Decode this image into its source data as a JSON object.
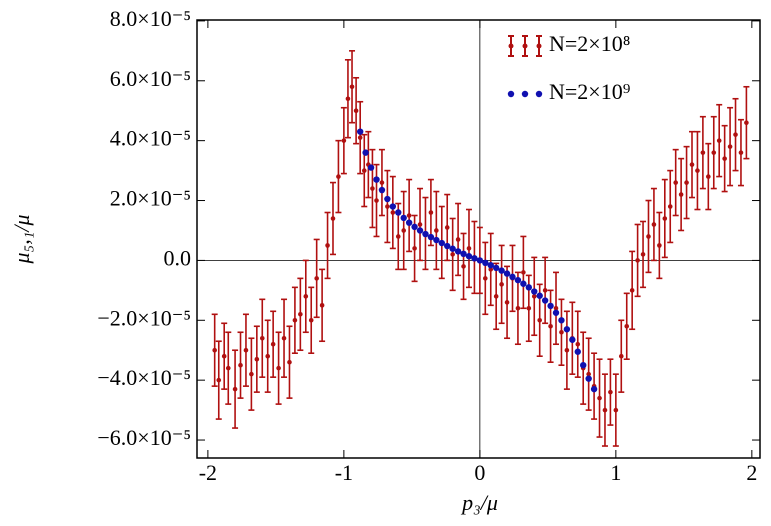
{
  "chart_data": {
    "type": "errorbar-scatter",
    "x_label": "p₃/μ",
    "y_label": "μ₅,₁/μ",
    "xlim": [
      -2.08,
      2.06
    ],
    "ylim": [
      -6.6e-05,
      8.03e-05
    ],
    "xticks": [
      -2,
      -1,
      0,
      1,
      2
    ],
    "yticks": [
      {
        "value": -6e-05,
        "label": "−6.0×10⁻⁵"
      },
      {
        "value": -4e-05,
        "label": "−4.0×10⁻⁵"
      },
      {
        "value": -2e-05,
        "label": "−2.0×10⁻⁵"
      },
      {
        "value": 0,
        "label": "0.0"
      },
      {
        "value": 2e-05,
        "label": "2.0×10⁻⁵"
      },
      {
        "value": 4e-05,
        "label": "4.0×10⁻⁵"
      },
      {
        "value": 6e-05,
        "label": "6.0×10⁻⁵"
      },
      {
        "value": 8e-05,
        "label": "8.0×10⁻⁵"
      }
    ],
    "zero_lines": true,
    "legend": "upper right",
    "series": [
      {
        "name": "N=2×10⁸",
        "color": "#b01010",
        "x": [
          -1.95,
          -1.92,
          -1.88,
          -1.85,
          -1.8,
          -1.76,
          -1.72,
          -1.68,
          -1.64,
          -1.6,
          -1.56,
          -1.52,
          -1.48,
          -1.44,
          -1.4,
          -1.36,
          -1.32,
          -1.28,
          -1.24,
          -1.2,
          -1.16,
          -1.12,
          -1.08,
          -1.04,
          -1.0,
          -0.97,
          -0.94,
          -0.91,
          -0.88,
          -0.85,
          -0.82,
          -0.79,
          -0.76,
          -0.72,
          -0.68,
          -0.64,
          -0.6,
          -0.56,
          -0.52,
          -0.48,
          -0.44,
          -0.4,
          -0.36,
          -0.32,
          -0.28,
          -0.24,
          -0.2,
          -0.16,
          -0.12,
          -0.08,
          -0.04,
          0.0,
          0.04,
          0.08,
          0.12,
          0.16,
          0.2,
          0.24,
          0.28,
          0.32,
          0.36,
          0.4,
          0.44,
          0.48,
          0.52,
          0.56,
          0.6,
          0.64,
          0.68,
          0.72,
          0.76,
          0.8,
          0.84,
          0.88,
          0.92,
          0.96,
          1.0,
          1.04,
          1.08,
          1.12,
          1.16,
          1.2,
          1.24,
          1.28,
          1.32,
          1.36,
          1.4,
          1.44,
          1.48,
          1.52,
          1.56,
          1.6,
          1.64,
          1.68,
          1.72,
          1.76,
          1.8,
          1.84,
          1.88,
          1.92,
          1.96
        ],
        "values": [
          -3e-05,
          -4e-05,
          -3.2e-05,
          -3.6e-05,
          -4.3e-05,
          -3.5e-05,
          -3e-05,
          -3.8e-05,
          -3.3e-05,
          -2.6e-05,
          -3.2e-05,
          -2.8e-05,
          -3.6e-05,
          -2.6e-05,
          -3.4e-05,
          -2e-05,
          -1.8e-05,
          -1.2e-05,
          -2e-05,
          -6e-06,
          -1.5e-05,
          5e-06,
          1.4e-05,
          2.8e-05,
          4e-05,
          5.4e-05,
          5.8e-05,
          5e-05,
          4.1e-05,
          3e-05,
          3.2e-05,
          2.4e-05,
          2e-05,
          2.6e-05,
          1.8e-05,
          1.6e-05,
          8e-06,
          1e-05,
          1.5e-05,
          4e-06,
          1.2e-05,
          9e-06,
          1.6e-05,
          1e-05,
          6e-06,
          1.1e-05,
          2e-06,
          7e-06,
          -2e-06,
          4e-06,
          1e-06,
          0.0,
          -6e-06,
          -3e-06,
          -1.2e-05,
          -8e-06,
          -1.4e-05,
          -6e-06,
          -1.6e-05,
          -4e-06,
          -1.6e-05,
          -1.2e-05,
          -2e-05,
          -1e-05,
          -2.2e-05,
          -1.6e-05,
          -2.4e-05,
          -3e-05,
          -2.6e-05,
          -2.8e-05,
          -3.6e-05,
          -3.8e-05,
          -4.2e-05,
          -4.6e-05,
          -5e-05,
          -4.4e-05,
          -5e-05,
          -3.2e-05,
          -2.2e-05,
          -1e-05,
          0.0,
          2e-06,
          8e-06,
          1.2e-05,
          5e-06,
          1.4e-05,
          1.8e-05,
          2.6e-05,
          2.2e-05,
          2.6e-05,
          3.2e-05,
          3e-05,
          3.6e-05,
          2.8e-05,
          3.6e-05,
          4e-05,
          3.4e-05,
          3.8e-05,
          4.2e-05,
          3.6e-05,
          4.6e-05
        ],
        "errors": [
          1.2e-05,
          1.3e-05,
          1.1e-05,
          1.2e-05,
          1.3e-05,
          1.1e-05,
          1.2e-05,
          1.2e-05,
          1.1e-05,
          1.3e-05,
          1.2e-05,
          1.1e-05,
          1.2e-05,
          1.3e-05,
          1.2e-05,
          1.1e-05,
          1.2e-05,
          1.2e-05,
          1.1e-05,
          1.3e-05,
          1.2e-05,
          1.1e-05,
          1.2e-05,
          1.2e-05,
          1.1e-05,
          1.3e-05,
          1.2e-05,
          1.1e-05,
          1.2e-05,
          1.2e-05,
          1.1e-05,
          1.3e-05,
          1.2e-05,
          1.1e-05,
          1.2e-05,
          1.2e-05,
          1.1e-05,
          1.3e-05,
          1.2e-05,
          1.1e-05,
          1.2e-05,
          1.2e-05,
          1.1e-05,
          1.3e-05,
          1.2e-05,
          1.1e-05,
          1.2e-05,
          1.2e-05,
          1.1e-05,
          1.3e-05,
          1.2e-05,
          1.1e-05,
          1.2e-05,
          1.2e-05,
          1.1e-05,
          1.3e-05,
          1.2e-05,
          1.1e-05,
          1.2e-05,
          1.2e-05,
          1.1e-05,
          1.3e-05,
          1.2e-05,
          1.1e-05,
          1.2e-05,
          1.2e-05,
          1.1e-05,
          1.3e-05,
          1.2e-05,
          1.1e-05,
          1.2e-05,
          1.2e-05,
          1.1e-05,
          1.3e-05,
          1.2e-05,
          1.1e-05,
          1.2e-05,
          1.2e-05,
          1.1e-05,
          1.3e-05,
          1.2e-05,
          1.1e-05,
          1.2e-05,
          1.2e-05,
          1.1e-05,
          1.3e-05,
          1.2e-05,
          1.1e-05,
          1.2e-05,
          1.2e-05,
          1.1e-05,
          1.3e-05,
          1.2e-05,
          1.1e-05,
          1.2e-05,
          1.2e-05,
          1.1e-05,
          1.3e-05,
          1.2e-05,
          1.1e-05,
          1.2e-05
        ]
      },
      {
        "name": "N=2×10⁹",
        "color": "#1010b0",
        "x": [
          -0.88,
          -0.84,
          -0.8,
          -0.76,
          -0.72,
          -0.68,
          -0.64,
          -0.6,
          -0.56,
          -0.52,
          -0.48,
          -0.44,
          -0.4,
          -0.36,
          -0.32,
          -0.28,
          -0.24,
          -0.2,
          -0.16,
          -0.12,
          -0.08,
          -0.04,
          0.0,
          0.04,
          0.08,
          0.12,
          0.16,
          0.2,
          0.24,
          0.28,
          0.32,
          0.36,
          0.4,
          0.44,
          0.48,
          0.52,
          0.56,
          0.6,
          0.64,
          0.68,
          0.72,
          0.76,
          0.8,
          0.84
        ],
        "values": [
          4.3e-05,
          3.6e-05,
          3.1e-05,
          2.7e-05,
          2.35e-05,
          2.05e-05,
          1.8e-05,
          1.6e-05,
          1.42e-05,
          1.26e-05,
          1.12e-05,
          1e-05,
          8.8e-06,
          7.8e-06,
          6.8e-06,
          5.8e-06,
          4.8e-06,
          3.9e-06,
          3e-06,
          2.2e-06,
          1.4e-06,
          7e-07,
          0.0,
          -8e-07,
          -1.6e-06,
          -2.5e-06,
          -3.4e-06,
          -4.4e-06,
          -5.5e-06,
          -6.6e-06,
          -7.8e-06,
          -9e-06,
          -1.04e-05,
          -1.18e-05,
          -1.34e-05,
          -1.52e-05,
          -1.75e-05,
          -2e-05,
          -2.3e-05,
          -2.65e-05,
          -3.05e-05,
          -3.5e-05,
          -3.95e-05,
          -4.3e-05
        ]
      }
    ]
  }
}
